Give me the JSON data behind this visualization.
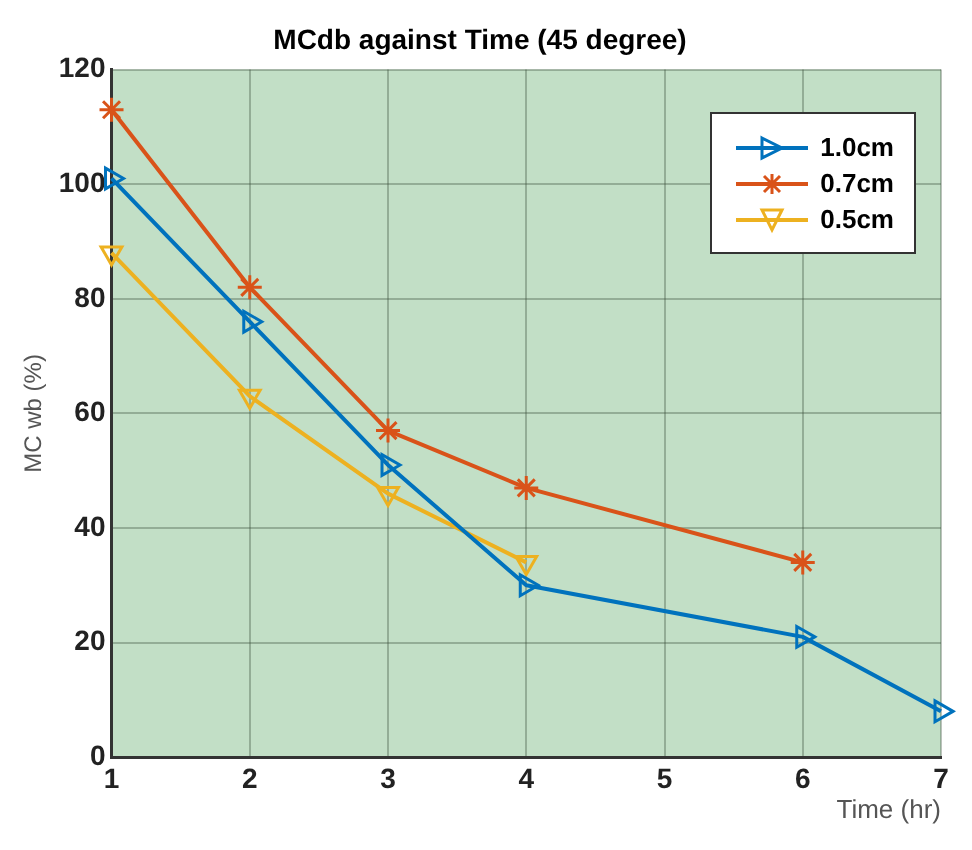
{
  "chart_data": {
    "type": "line",
    "title": "MCdb against Time (45 degree)",
    "xlabel": "Time (hr)",
    "ylabel": "MC wb (%)",
    "xlim": [
      1,
      7
    ],
    "xticks": [
      1,
      2,
      3,
      4,
      5,
      6,
      7
    ],
    "ylim": [
      0,
      120
    ],
    "yticks": [
      0,
      20,
      40,
      60,
      80,
      100,
      120
    ],
    "grid": true,
    "legend": "top right",
    "series": [
      {
        "name": "1.0cm",
        "color": "#0072bd",
        "marker": "triangle",
        "x": [
          1,
          2,
          3,
          4,
          6,
          7
        ],
        "values": [
          101,
          76,
          51,
          30,
          21,
          8
        ]
      },
      {
        "name": "0.7cm",
        "color": "#d95319",
        "marker": "cross",
        "x": [
          1,
          2,
          3,
          4,
          6
        ],
        "values": [
          113,
          82,
          57,
          47,
          34
        ]
      },
      {
        "name": "0.5cm",
        "color": "#edb120",
        "marker": "triangle",
        "x": [
          1,
          2,
          3,
          4
        ],
        "values": [
          88,
          63,
          46,
          34
        ]
      }
    ]
  }
}
